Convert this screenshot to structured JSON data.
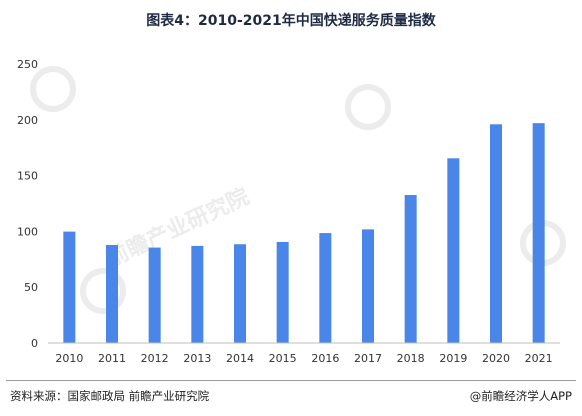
{
  "title": "图表4：2010-2021年中国快递服务质量指数",
  "source": "资料来源：国家邮政局 前瞻产业研究院",
  "credit": "@前瞻经济学人APP",
  "watermark": "前瞻产业研究院",
  "colors": {
    "bar": "#4a86e8",
    "axis": "#bfbfbf",
    "text": "#333333"
  },
  "chart_data": {
    "type": "bar",
    "categories": [
      "2010",
      "2011",
      "2012",
      "2013",
      "2014",
      "2015",
      "2016",
      "2017",
      "2018",
      "2019",
      "2020",
      "2021"
    ],
    "values": [
      99.8,
      87.8,
      85.5,
      87,
      88.5,
      90.5,
      98.5,
      101.8,
      132.6,
      165.5,
      196,
      197
    ],
    "ylim": [
      0,
      250
    ],
    "yticks": [
      0,
      50,
      100,
      150,
      200,
      250
    ],
    "grid": false
  }
}
